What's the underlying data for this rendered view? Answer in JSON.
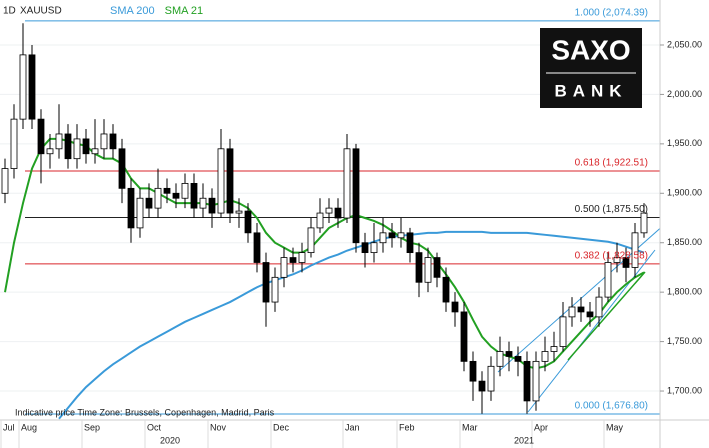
{
  "chart_data": {
    "type": "candlestick",
    "timeframe": "1D",
    "symbol": "XAUUSD",
    "footer": "Indicative price    Time Zone: Brussels, Copenhagen, Madrid, Paris",
    "logo": {
      "top": "SAXO",
      "bottom": "BANK"
    },
    "categories": [
      "Jul",
      null,
      "Aug",
      null,
      null,
      null,
      null,
      null,
      null,
      "Sep",
      null,
      null,
      null,
      null,
      null,
      null,
      "Oct",
      null,
      null,
      null,
      null,
      null,
      null,
      "Nov",
      null,
      null,
      null,
      null,
      null,
      null,
      "Dec",
      null,
      null,
      null,
      null,
      null,
      null,
      null,
      "Jan",
      null,
      null,
      null,
      null,
      null,
      "Feb",
      null,
      null,
      null,
      null,
      null,
      null,
      "Mar",
      null,
      null,
      null,
      null,
      null,
      null,
      null,
      "Apr",
      null,
      null,
      null,
      null,
      null,
      null,
      null,
      "May",
      null,
      null,
      null,
      null
    ],
    "x_axis_years": [
      "2020",
      "2021"
    ],
    "open": [
      1900,
      1925,
      1975,
      2040,
      1975,
      1940,
      1945,
      1960,
      1935,
      1955,
      1940,
      1945,
      1960,
      1945,
      1905,
      1865,
      1895,
      1885,
      1905,
      1900,
      1895,
      1910,
      1885,
      1895,
      1880,
      1945,
      1880,
      1882,
      1860,
      1830,
      1790,
      1815,
      1835,
      1830,
      1840,
      1865,
      1880,
      1885,
      1875,
      1945,
      1850,
      1840,
      1850,
      1860,
      1855,
      1860,
      1840,
      1810,
      1835,
      1815,
      1790,
      1780,
      1730,
      1710,
      1700,
      1725,
      1740,
      1735,
      1730,
      1690,
      1730,
      1740,
      1745,
      1775,
      1785,
      1780,
      1775,
      1795,
      1830,
      1835,
      1825,
      1860
    ],
    "high": [
      1935,
      1990,
      2072,
      2050,
      1985,
      1960,
      1990,
      1970,
      1970,
      1965,
      1975,
      1975,
      1970,
      1955,
      1915,
      1905,
      1910,
      1925,
      1915,
      1910,
      1920,
      1920,
      1910,
      1905,
      1965,
      1955,
      1895,
      1890,
      1870,
      1840,
      1825,
      1845,
      1845,
      1850,
      1875,
      1895,
      1895,
      1895,
      1960,
      1950,
      1860,
      1870,
      1875,
      1870,
      1875,
      1865,
      1850,
      1845,
      1840,
      1825,
      1800,
      1790,
      1740,
      1720,
      1735,
      1755,
      1750,
      1745,
      1740,
      1740,
      1755,
      1760,
      1790,
      1795,
      1795,
      1790,
      1805,
      1840,
      1850,
      1845,
      1870,
      1890
    ],
    "low": [
      1890,
      1915,
      1965,
      1965,
      1910,
      1925,
      1935,
      1925,
      1925,
      1930,
      1930,
      1935,
      1935,
      1890,
      1850,
      1855,
      1875,
      1875,
      1890,
      1885,
      1885,
      1875,
      1875,
      1865,
      1875,
      1870,
      1865,
      1850,
      1820,
      1765,
      1780,
      1805,
      1820,
      1820,
      1835,
      1860,
      1870,
      1865,
      1870,
      1840,
      1825,
      1830,
      1840,
      1845,
      1845,
      1830,
      1795,
      1800,
      1805,
      1780,
      1765,
      1720,
      1690,
      1677,
      1690,
      1715,
      1720,
      1715,
      1677,
      1680,
      1720,
      1730,
      1740,
      1765,
      1770,
      1765,
      1765,
      1790,
      1820,
      1810,
      1815,
      1855
    ],
    "close": [
      1925,
      1975,
      2040,
      1975,
      1940,
      1945,
      1960,
      1935,
      1955,
      1940,
      1945,
      1960,
      1945,
      1905,
      1865,
      1895,
      1885,
      1905,
      1900,
      1895,
      1910,
      1885,
      1895,
      1880,
      1945,
      1880,
      1882,
      1860,
      1830,
      1790,
      1815,
      1835,
      1830,
      1840,
      1865,
      1880,
      1885,
      1875,
      1945,
      1850,
      1840,
      1850,
      1860,
      1855,
      1860,
      1840,
      1810,
      1835,
      1815,
      1790,
      1780,
      1730,
      1710,
      1700,
      1725,
      1740,
      1735,
      1730,
      1690,
      1730,
      1740,
      1745,
      1775,
      1785,
      1780,
      1775,
      1795,
      1830,
      1835,
      1825,
      1860,
      1880
    ],
    "up_color": "#ffffff",
    "down_color": "#000000",
    "series": [
      {
        "name": "SMA 200",
        "color": "#3a9ad9",
        "values": [
          null,
          null,
          null,
          null,
          null,
          null,
          1672,
          1683,
          1694,
          1704,
          1712,
          1720,
          1727,
          1733,
          1739,
          1745,
          1750,
          1755,
          1760,
          1765,
          1770,
          1774,
          1778,
          1782,
          1786,
          1790,
          1795,
          1800,
          1805,
          1809,
          1812,
          1815,
          1818,
          1822,
          1827,
          1831,
          1835,
          1838,
          1842,
          1845,
          1848,
          1851,
          1854,
          1856,
          1857,
          1858,
          1859,
          1860,
          1860,
          1861,
          1861,
          1861,
          1861,
          1861,
          1860,
          1860,
          1860,
          1860,
          1860,
          1859,
          1858,
          1857,
          1856,
          1855,
          1854,
          1853,
          1852,
          1851,
          1849,
          1846,
          1843,
          1840
        ]
      },
      {
        "name": "SMA 21",
        "color": "#22a022",
        "values": [
          1800,
          1850,
          1890,
          1925,
          1945,
          1955,
          1955,
          1953,
          1950,
          1948,
          1940,
          1935,
          1935,
          1930,
          1915,
          1905,
          1905,
          1900,
          1895,
          1890,
          1890,
          1890,
          1890,
          1888,
          1890,
          1893,
          1890,
          1885,
          1875,
          1860,
          1850,
          1845,
          1840,
          1840,
          1845,
          1855,
          1865,
          1870,
          1875,
          1878,
          1875,
          1872,
          1868,
          1862,
          1855,
          1850,
          1848,
          1842,
          1830,
          1818,
          1805,
          1790,
          1772,
          1755,
          1745,
          1738,
          1735,
          1732,
          1725,
          1723,
          1725,
          1730,
          1740,
          1750,
          1760,
          1770,
          1778,
          1790,
          1800,
          1808,
          1815,
          1820
        ]
      }
    ],
    "levels": [
      {
        "value": 2074.39,
        "label": "1.000 (2,074.39)",
        "color": "#3a9ad9"
      },
      {
        "value": 1922.51,
        "label": "0.618 (1,922.51)",
        "color": "#d9262b"
      },
      {
        "value": 1875.5,
        "label": "0.500 (1,875.50)",
        "color": "#222222"
      },
      {
        "value": 1828.58,
        "label": "0.382 (1,828.58)",
        "color": "#d9262b"
      },
      {
        "value": 1676.8,
        "label": "0.000 (1,676.80)",
        "color": "#3a9ad9"
      }
    ],
    "ylim": [
      1670.7,
      2095.5
    ],
    "yticks": [
      {
        "value": 1700,
        "label": "1,700.00"
      },
      {
        "value": 1750,
        "label": "1,750.00"
      },
      {
        "value": 1800,
        "label": "1,800.00"
      },
      {
        "value": 1850,
        "label": "1,850.00"
      },
      {
        "value": 1900,
        "label": "1,900.00"
      },
      {
        "value": 1950,
        "label": "1,950.00"
      },
      {
        "value": 2000,
        "label": "2,000.00"
      },
      {
        "value": 2050,
        "label": "2,050.00"
      }
    ],
    "grid": true
  }
}
